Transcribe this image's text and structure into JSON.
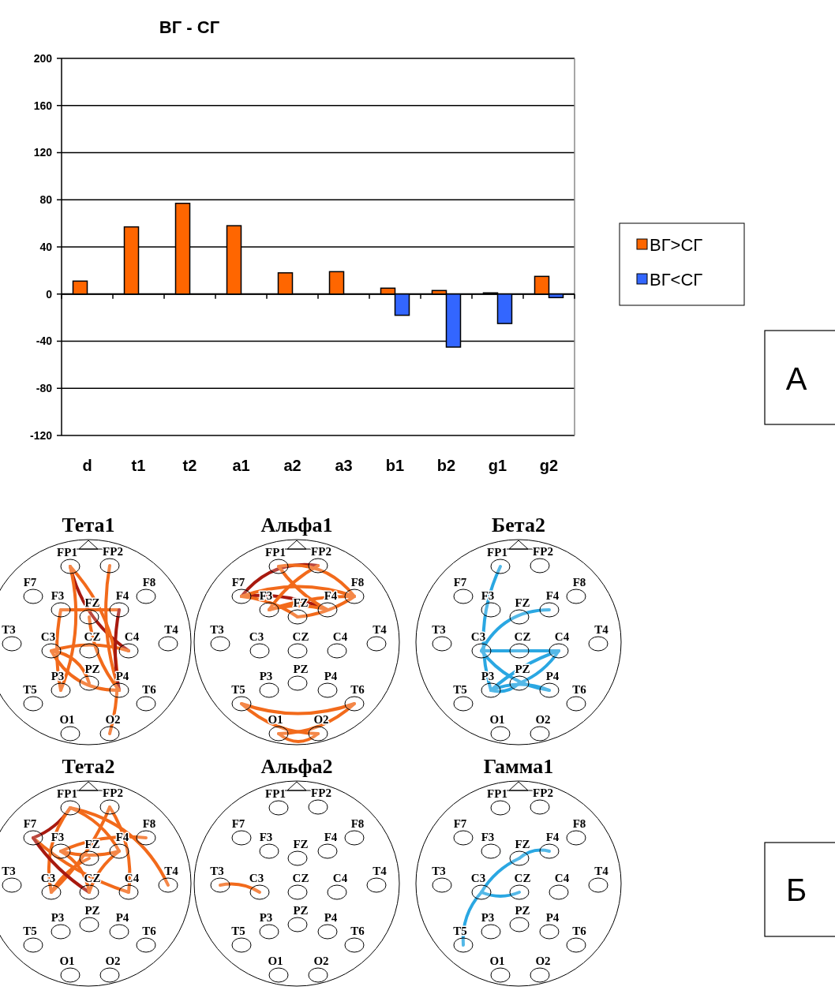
{
  "chart_data": [
    {
      "type": "bar",
      "title": "ВГ - СГ",
      "categories": [
        "d",
        "t1",
        "t2",
        "a1",
        "a2",
        "a3",
        "b1",
        "b2",
        "g1",
        "g2"
      ],
      "series": [
        {
          "name": "ВГ>СГ",
          "color": "#ff6600",
          "values": [
            11,
            57,
            77,
            58,
            18,
            19,
            5,
            3,
            1,
            15
          ]
        },
        {
          "name": "ВГ<СГ",
          "color": "#3366ff",
          "values": [
            null,
            null,
            null,
            null,
            null,
            null,
            -18,
            -45,
            -25,
            -3
          ]
        }
      ],
      "ylim": [
        -120,
        200
      ],
      "yticks": [
        -120,
        -80,
        -40,
        0,
        40,
        80,
        120,
        160,
        200
      ],
      "grid": "y",
      "legend": "right",
      "annotations": [
        "А"
      ]
    },
    {
      "type": "other",
      "title": "Тета1",
      "categories": [
        "FP1",
        "FP2",
        "F7",
        "F3",
        "FZ",
        "F4",
        "F8",
        "T3",
        "C3",
        "CZ",
        "C4",
        "T4",
        "T5",
        "P3",
        "PZ",
        "P4",
        "T6",
        "O1",
        "O2"
      ]
    },
    {
      "type": "other",
      "title": "Альфа1",
      "categories": [
        "FP1",
        "FP2",
        "F7",
        "F3",
        "FZ",
        "F4",
        "F8",
        "T3",
        "C3",
        "CZ",
        "C4",
        "T4",
        "T5",
        "P3",
        "PZ",
        "P4",
        "T6",
        "O1",
        "O2"
      ]
    },
    {
      "type": "other",
      "title": "Бета2",
      "categories": [
        "FP1",
        "FP2",
        "F7",
        "F3",
        "FZ",
        "F4",
        "F8",
        "T3",
        "C3",
        "CZ",
        "C4",
        "T4",
        "T5",
        "P3",
        "PZ",
        "P4",
        "T6",
        "O1",
        "O2"
      ]
    },
    {
      "type": "other",
      "title": "Тета2",
      "categories": [
        "FP1",
        "FP2",
        "F7",
        "F3",
        "FZ",
        "F4",
        "F8",
        "T3",
        "C3",
        "CZ",
        "C4",
        "T4",
        "T5",
        "P3",
        "PZ",
        "P4",
        "T6",
        "O1",
        "O2"
      ]
    },
    {
      "type": "other",
      "title": "Альфа2",
      "categories": [
        "FP1",
        "FP2",
        "F7",
        "F3",
        "FZ",
        "F4",
        "F8",
        "T3",
        "C3",
        "CZ",
        "C4",
        "T4",
        "T5",
        "P3",
        "PZ",
        "P4",
        "T6",
        "O1",
        "O2"
      ]
    },
    {
      "type": "other",
      "title": "Гамма1",
      "categories": [
        "FP1",
        "FP2",
        "F7",
        "F3",
        "FZ",
        "F4",
        "F8",
        "T3",
        "C3",
        "CZ",
        "C4",
        "T4",
        "T5",
        "P3",
        "PZ",
        "P4",
        "T6",
        "O1",
        "O2"
      ],
      "annotations": [
        "Б"
      ]
    }
  ]
}
